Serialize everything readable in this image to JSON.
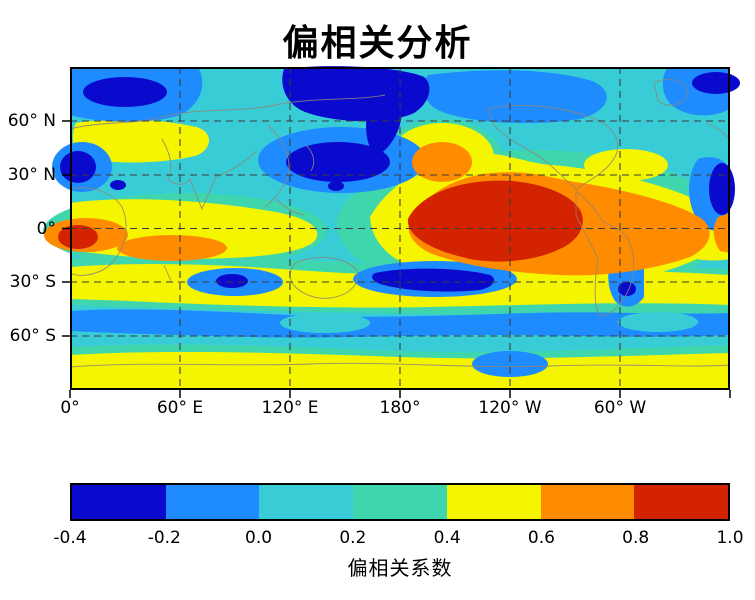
{
  "chart_data": {
    "type": "heatmap",
    "variant": "filled_contour_world_map",
    "title": "偏相关分析",
    "colorbar": {
      "label": "偏相关系数",
      "orientation": "horizontal",
      "tick_labels": [
        "-0.4",
        "-0.2",
        "0.0",
        "0.2",
        "0.4",
        "0.6",
        "0.8",
        "1.0"
      ],
      "levels": [
        -0.4,
        -0.2,
        0.0,
        0.2,
        0.4,
        0.6,
        0.8,
        1.0
      ],
      "colors": [
        "#0a0ace",
        "#1e8bff",
        "#38cdd6",
        "#3fd6ae",
        "#f5f500",
        "#ff8c00",
        "#d42300"
      ]
    },
    "x_axis": {
      "tick_labels": [
        "0°",
        "60° E",
        "120° E",
        "180°",
        "120° W",
        "60° W"
      ],
      "range": "0°E to 360°E"
    },
    "y_axis": {
      "tick_labels": [
        "60° N",
        "30° N",
        "0°",
        "30° S",
        "60° S"
      ],
      "range": "90°S to 90°N"
    },
    "grid": {
      "style": "dashed",
      "color": "#3c3c3c"
    },
    "coastline_color": "#8f8578",
    "features": [
      {
        "region": "equatorial central-eastern Pacific (180–90°W)",
        "value": "0.8 to 1.0 (red core, orange/yellow halo)"
      },
      {
        "region": "North Pacific 30–50°N",
        "value": "-0.4 to -0.2 (dark blue)"
      },
      {
        "region": "Arctic / Siberian sector",
        "value": "-0.4 to -0.2 (dark blue)"
      },
      {
        "region": "western Indian Ocean near equator",
        "value": "0.6 to 0.8 (orange)"
      },
      {
        "region": "subtropical South Pacific ~30°S",
        "value": "-0.4 to -0.2 (dark blue streak)"
      },
      {
        "region": "southern mid-latitude band ~30–40°S",
        "value": "0.4 to 0.6 (yellow)"
      },
      {
        "region": "Antarctic coastal band",
        "value": "0.4 to 0.6 (yellow)"
      },
      {
        "region": "background oceans",
        "value": "0.0 to 0.4 (cyan)"
      }
    ]
  }
}
